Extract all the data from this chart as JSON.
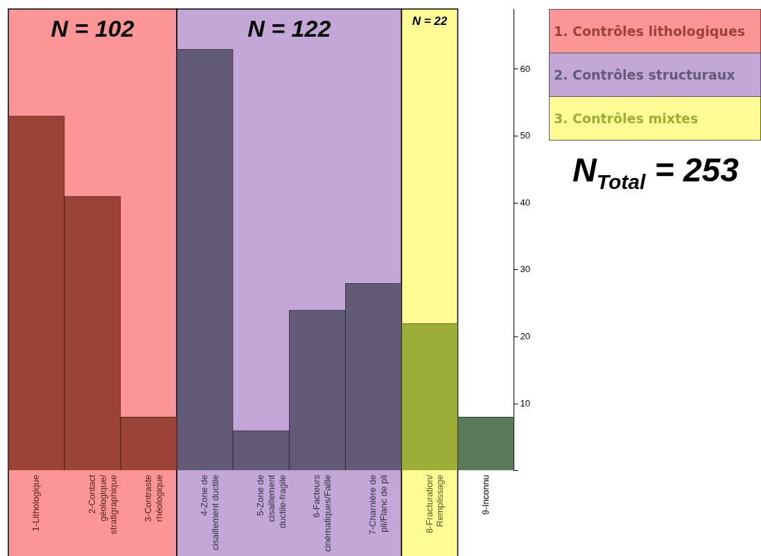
{
  "chart_data": {
    "type": "bar",
    "categories": [
      "1-Lithologique",
      "2-Contact géologique/ stratigraphique",
      "3-Contraste rhéologique",
      "4-Zone de cisaillement ductile",
      "5-Zone de cisaillement ductile-fragile",
      "6-Facteurs cinématiques/Faille",
      "7-Charnière de pli/Flanc de pli",
      "8-Fracturation/ Remplissage",
      "9-Inconnu"
    ],
    "series": [
      {
        "name": "1. Contrôles lithologiques",
        "color": "#9b4336",
        "values": [
          53,
          41,
          8,
          null,
          null,
          null,
          null,
          null,
          null
        ]
      },
      {
        "name": "2. Contrôles structuraux",
        "color": "#635a78",
        "values": [
          null,
          null,
          null,
          63,
          6,
          24,
          28,
          null,
          null
        ]
      },
      {
        "name": "3. Contrôles mixtes",
        "color": "#9dae38",
        "values": [
          null,
          null,
          null,
          null,
          null,
          null,
          null,
          22,
          null
        ]
      },
      {
        "color": "#5a7a5a",
        "values": [
          null,
          null,
          null,
          null,
          null,
          null,
          null,
          null,
          8
        ]
      }
    ],
    "ylim": [
      0,
      69
    ],
    "yticks": [
      {
        "value": 0,
        "label": null
      },
      10,
      20,
      30,
      40,
      50,
      60
    ],
    "grid": false,
    "legend": "top right",
    "bands": [
      {
        "axis": "x",
        "from": "1-Lithologique",
        "to": "3-Contraste rhéologique",
        "label": "N = 102",
        "color": "#fc9595"
      },
      {
        "axis": "x",
        "from": "4-Zone de cisaillement ductile",
        "to": "7-Charnière de pli/Flanc de pli",
        "label": "N = 122",
        "color": "#c3a8d7"
      },
      {
        "axis": "x",
        "from": "8-Fracturation/ Remplissage",
        "to": "8-Fracturation/ Remplissage",
        "label": "N = 22",
        "color": "#fffc95"
      }
    ],
    "annotations": [
      "N$_{Total}$ = 253"
    ]
  }
}
